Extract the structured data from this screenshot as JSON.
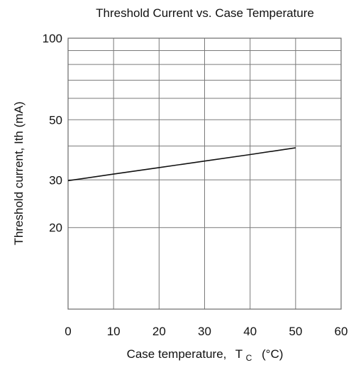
{
  "chart_data": {
    "type": "line",
    "title": "Threshold Current vs. Case Temperature",
    "xlabel": "Case temperature,",
    "xlabel_symbol": "T",
    "xlabel_subscript": "C",
    "xlabel_unit": "(°C)",
    "ylabel": "Threshold current,  Ith  (mA)",
    "xlim": [
      0,
      60
    ],
    "ylim": [
      10,
      100
    ],
    "y_scale": "log",
    "grid": true,
    "x_ticks": [
      0,
      10,
      20,
      30,
      40,
      50,
      60
    ],
    "x_tick_labels": [
      "0",
      "10",
      "20",
      "30",
      "40",
      "50",
      "60"
    ],
    "y_ticks": [
      20,
      30,
      50,
      100
    ],
    "y_tick_labels": [
      "20",
      "30",
      "50",
      "100"
    ],
    "y_gridlines": [
      20,
      30,
      40,
      50,
      60,
      70,
      80,
      90,
      100
    ],
    "series": [
      {
        "x": [
          0,
          10,
          20,
          30,
          40,
          50
        ],
        "y": [
          29.8,
          31.5,
          33.3,
          35.2,
          37.2,
          39.4
        ]
      }
    ]
  }
}
